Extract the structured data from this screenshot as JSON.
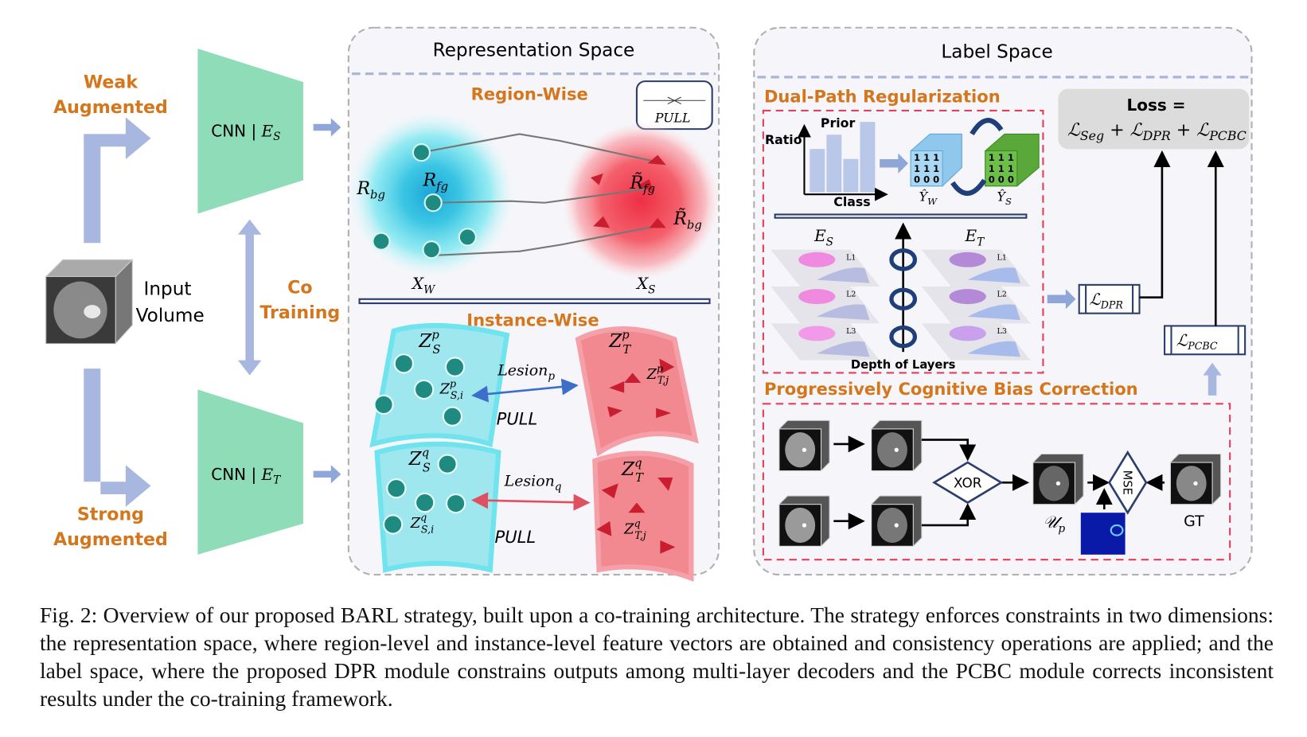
{
  "figure": {
    "left": {
      "weak_label_1": "Weak",
      "weak_label_2": "Augmented",
      "strong_label_1": "Strong",
      "strong_label_2": "Augmented",
      "input_label_1": "Input",
      "input_label_2": "Volume",
      "co_label_1": "Co",
      "co_label_2": "Training",
      "encoder_s": {
        "base": "CNN | ",
        "var": "E",
        "sub": "S"
      },
      "encoder_t": {
        "base": "CNN | ",
        "var": "E",
        "sub": "T"
      }
    },
    "representation_space": {
      "title": "Representation Space",
      "region_title": "Region-Wise",
      "legend_pull": "PULL",
      "r_bg": {
        "var": "R",
        "sub": "bg"
      },
      "r_fg": {
        "var": "R",
        "sub": "fg"
      },
      "r_fg_tilde": {
        "var": "R̃",
        "sub": "fg"
      },
      "r_bg_tilde": {
        "var": "R̃",
        "sub": "bg"
      },
      "x_w": {
        "var": "X",
        "sub": "W"
      },
      "x_s": {
        "var": "X",
        "sub": "S"
      },
      "instance_title": "Instance-Wise",
      "z_s_p": {
        "var": "Z",
        "sub": "S",
        "sup": "p"
      },
      "z_t_p": {
        "var": "Z",
        "sub": "T",
        "sup": "p"
      },
      "z_s_i_p": {
        "var": "Z",
        "sub": "S,i",
        "sup": "p"
      },
      "z_t_j_p": {
        "var": "Z",
        "sub": "T,j",
        "sup": "p"
      },
      "z_s_q": {
        "var": "Z",
        "sub": "S",
        "sup": "q"
      },
      "z_t_q": {
        "var": "Z",
        "sub": "T",
        "sup": "q"
      },
      "z_s_i_q": {
        "var": "Z",
        "sub": "S,i",
        "sup": "q"
      },
      "z_t_j_q": {
        "var": "Z",
        "sub": "T,j",
        "sup": "q"
      },
      "lesion_p": {
        "var": "Lesion",
        "sub": "p"
      },
      "lesion_q": {
        "var": "Lesion",
        "sub": "q"
      },
      "pull_1": "PULL",
      "pull_2": "PULL"
    },
    "label_space": {
      "title": "Label Space",
      "dpr_title": "Dual-Path Regularization",
      "prior": "Prior",
      "ratio": "Ratio",
      "class": "Class",
      "prior_bars": [
        0.62,
        0.82,
        0.48,
        1.0
      ],
      "matrix_values": [
        "1 1 1",
        "1 1 1",
        "0 0 0"
      ],
      "y_w": {
        "var": "Ŷ",
        "sub": "W"
      },
      "y_s": {
        "var": "Ŷ",
        "sub": "S"
      },
      "e_s": {
        "var": "E",
        "sub": "S"
      },
      "e_t": {
        "var": "E",
        "sub": "T"
      },
      "layers": [
        "L1",
        "L2",
        "L3"
      ],
      "depth_label": "Depth of Layers",
      "loss_title": "Loss =",
      "loss_formula": {
        "t1": "Seg",
        "t2": "DPR",
        "t3": "PCBC"
      },
      "l_dpr": {
        "var": "ℒ",
        "sub": "DPR"
      },
      "l_pcbc": {
        "var": "ℒ",
        "sub": "PCBC"
      },
      "pcbc_title": "Progressively Cognitive Bias Correction",
      "xor": "XOR",
      "mse": "MSE",
      "u_p": {
        "var": "𝒰",
        "sub": "p"
      },
      "gt": "GT"
    },
    "colors": {
      "accent_orange": "#d4761c",
      "cyan": "#5fe0ee",
      "red": "#f0505c",
      "navy": "#2c3e6e",
      "dashed_red": "#e0405a"
    }
  },
  "caption": "Fig. 2: Overview of our proposed BARL strategy, built upon a co-training architecture. The strategy enforces constraints in two dimensions: the representation space, where region-level and instance-level feature vectors are obtained and consistency operations are applied; and the label space, where the proposed DPR module constrains outputs among multi-layer decoders and the PCBC module corrects inconsistent results under the co-training framework."
}
